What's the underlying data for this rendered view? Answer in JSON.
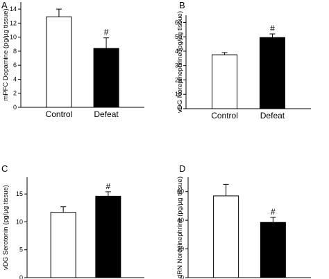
{
  "chart_data": [
    {
      "panel": "A",
      "type": "bar",
      "categories": [
        "Control",
        "Defeat"
      ],
      "values": [
        12.9,
        8.4
      ],
      "errors": [
        1.1,
        1.5
      ],
      "colors": [
        "#ffffff",
        "#000000"
      ],
      "significance": [
        "",
        "#"
      ],
      "ylabel": "mPFC Dopamine (pg/µg tissue)",
      "ylim": [
        0,
        15
      ],
      "yticks": [
        0,
        2,
        4,
        6,
        8,
        10,
        12,
        14
      ]
    },
    {
      "panel": "B",
      "type": "bar",
      "categories": [
        "Control",
        "Defeat"
      ],
      "values": [
        37.5,
        49.5
      ],
      "errors": [
        1.5,
        2.5
      ],
      "colors": [
        "#ffffff",
        "#000000"
      ],
      "significance": [
        "",
        "#"
      ],
      "ylabel": "vDG Norepinephrine (pg/µg tissue)",
      "ylim": [
        0,
        65
      ],
      "yticks": [
        0,
        10,
        20,
        30,
        40,
        50,
        60
      ]
    },
    {
      "panel": "C",
      "type": "bar",
      "categories": [
        "Control",
        "Defeat"
      ],
      "values": [
        11.7,
        14.6
      ],
      "errors": [
        1.0,
        0.8
      ],
      "colors": [
        "#ffffff",
        "#000000"
      ],
      "significance": [
        "",
        "#"
      ],
      "ylabel": "vDG Serotonin (pg/µg tissue)",
      "ylim": [
        0,
        18
      ],
      "yticks": [
        0,
        5,
        10,
        15
      ]
    },
    {
      "panel": "D",
      "type": "bar",
      "categories": [
        "Control",
        "Defeat"
      ],
      "values": [
        57,
        38.5
      ],
      "errors": [
        8,
        3.5
      ],
      "colors": [
        "#ffffff",
        "#000000"
      ],
      "significance": [
        "",
        "#"
      ],
      "ylabel": "dRN Norepinephrine (pg/µg tissue)",
      "ylim": [
        0,
        70
      ],
      "yticks": [
        0,
        20,
        40,
        60
      ]
    }
  ]
}
